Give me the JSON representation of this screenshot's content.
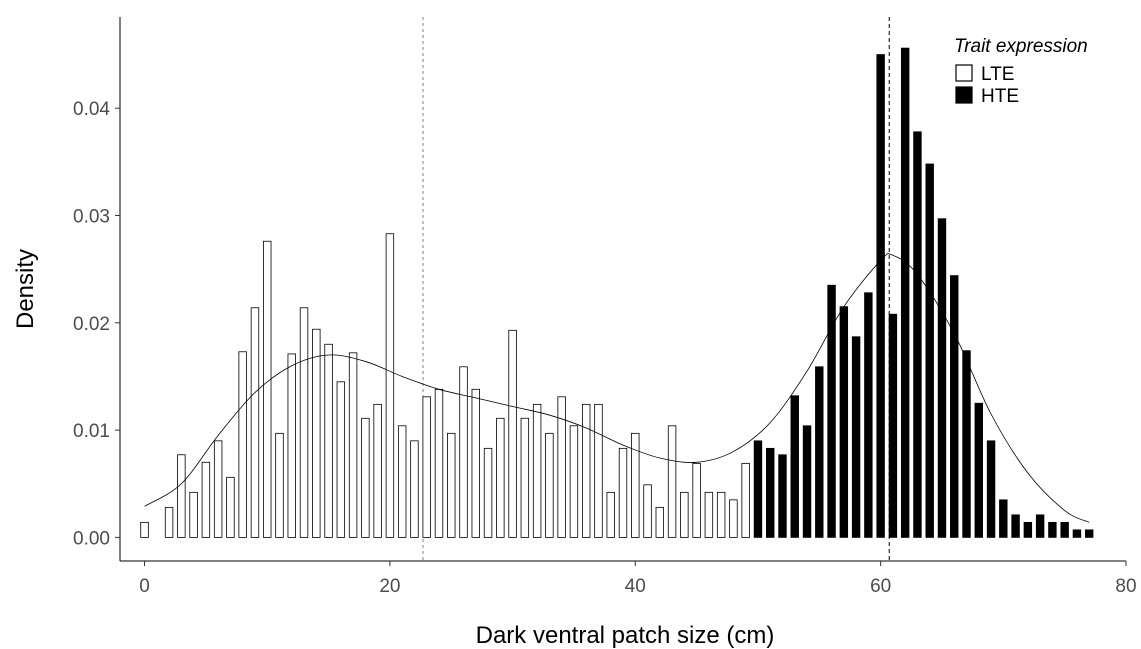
{
  "chart_data": {
    "type": "bar",
    "xlabel": "Dark ventral patch size (cm)",
    "ylabel": "Density",
    "xlim": [
      -2,
      80
    ],
    "ylim": [
      -0.0022,
      0.0485
    ],
    "x_ticks": [
      0,
      20,
      40,
      60,
      80
    ],
    "y_ticks": [
      0.0,
      0.01,
      0.02,
      0.03,
      0.04
    ],
    "y_tick_labels": [
      "0.00",
      "0.01",
      "0.02",
      "0.03",
      "0.04"
    ],
    "grid": false,
    "legend": {
      "title": "Trait expression",
      "position": "top-right",
      "entries": [
        {
          "label": "LTE",
          "fill": "#ffffff"
        },
        {
          "label": "HTE",
          "fill": "#000000"
        }
      ]
    },
    "series": [
      {
        "name": "LTE",
        "fill": "#ffffff",
        "stroke": "#000000",
        "x": [
          0,
          2,
          3,
          4,
          5,
          6,
          7,
          8,
          9,
          10,
          11,
          12,
          13,
          14,
          15,
          16,
          17,
          18,
          19,
          20,
          21,
          22,
          23,
          24,
          25,
          26,
          27,
          28,
          29,
          30,
          31,
          32,
          33,
          34,
          35,
          36,
          37,
          38,
          39,
          40,
          41,
          42,
          43,
          44,
          45,
          46,
          47,
          48,
          49
        ],
        "values": [
          0.0014,
          0.0028,
          0.0077,
          0.0042,
          0.007,
          0.009,
          0.0056,
          0.0173,
          0.0214,
          0.0276,
          0.0097,
          0.0171,
          0.0214,
          0.0194,
          0.018,
          0.0145,
          0.0172,
          0.0111,
          0.0124,
          0.0283,
          0.0104,
          0.009,
          0.0131,
          0.0138,
          0.0097,
          0.0159,
          0.0138,
          0.0083,
          0.0111,
          0.0193,
          0.0111,
          0.0124,
          0.0097,
          0.0131,
          0.0104,
          0.0124,
          0.0124,
          0.0042,
          0.0083,
          0.0097,
          0.0049,
          0.0028,
          0.0104,
          0.0042,
          0.0069,
          0.0042,
          0.0042,
          0.0035,
          0.0069
        ]
      },
      {
        "name": "HTE",
        "fill": "#000000",
        "stroke": "#000000",
        "x": [
          50,
          51,
          52,
          53,
          54,
          55,
          56,
          57,
          58,
          59,
          60,
          61,
          62,
          63,
          64,
          65,
          66,
          67,
          68,
          69,
          70,
          71,
          72,
          73,
          74,
          75,
          76,
          77
        ],
        "values": [
          0.009,
          0.0083,
          0.0077,
          0.0132,
          0.0104,
          0.0159,
          0.0235,
          0.0215,
          0.0187,
          0.0228,
          0.045,
          0.0208,
          0.0456,
          0.0378,
          0.0348,
          0.0297,
          0.0244,
          0.0174,
          0.0125,
          0.009,
          0.0035,
          0.0021,
          0.0014,
          0.0021,
          0.0014,
          0.0014,
          0.0007,
          0.0007
        ]
      }
    ],
    "reference_lines": [
      {
        "x": 22.7,
        "style": "dotted",
        "color": "#808080"
      },
      {
        "x": 60.7,
        "style": "dashed",
        "color": "#000000"
      }
    ],
    "density_curve": {
      "x": [
        0,
        3,
        6,
        9,
        12,
        15,
        18,
        21,
        24,
        27,
        30,
        33,
        36,
        39,
        42,
        45,
        48,
        51,
        54,
        57,
        60,
        61,
        63,
        66,
        69,
        72,
        75,
        77
      ],
      "y": [
        0.0029,
        0.005,
        0.0095,
        0.0135,
        0.016,
        0.017,
        0.0164,
        0.015,
        0.0138,
        0.013,
        0.0122,
        0.0114,
        0.0102,
        0.0086,
        0.0074,
        0.007,
        0.008,
        0.0107,
        0.0155,
        0.0215,
        0.0258,
        0.0263,
        0.0245,
        0.019,
        0.0115,
        0.006,
        0.0025,
        0.0014
      ]
    }
  }
}
